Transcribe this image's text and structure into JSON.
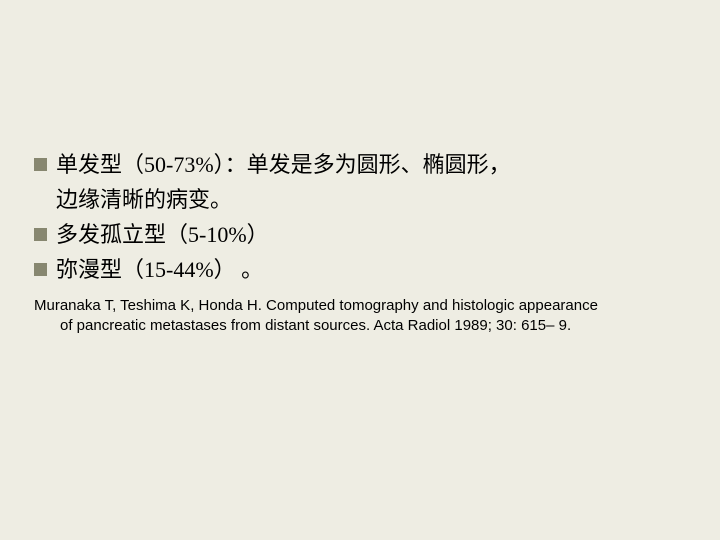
{
  "bullets": [
    {
      "line1": "单发型（50-73%）：单发是多为圆形、椭圆形，",
      "line2": "边缘清晰的病变。"
    },
    {
      "line1": "多发孤立型（5-10%）"
    },
    {
      "line1": "弥漫型（15-44%） 。"
    }
  ],
  "citation": {
    "line1": "Muranaka T, Teshima K, Honda H. Computed tomography and histologic appearance",
    "line2": "of pancreatic metastases from distant sources. Acta Radiol 1989; 30: 615– 9."
  },
  "colors": {
    "background": "#eeede3",
    "bullet_marker": "#878770",
    "text": "#000000"
  }
}
